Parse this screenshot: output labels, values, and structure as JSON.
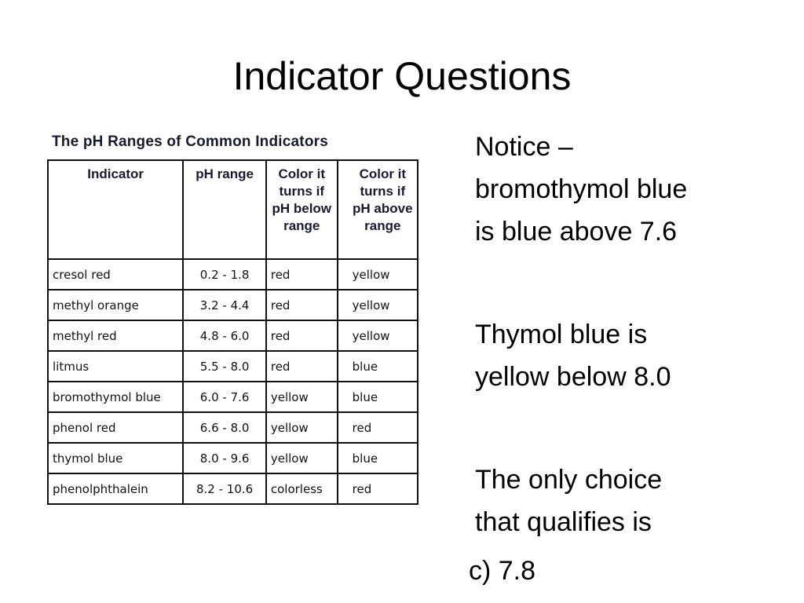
{
  "slide": {
    "title": "Indicator Questions"
  },
  "table": {
    "caption": "The pH Ranges of Common Indicators",
    "headers": [
      "Indicator",
      "pH range",
      "Color it turns if pH below range",
      "Color it turns if pH above range"
    ],
    "rows": [
      [
        "cresol red",
        "0.2 - 1.8",
        "red",
        "yellow"
      ],
      [
        "methyl orange",
        "3.2 - 4.4",
        "red",
        "yellow"
      ],
      [
        "methyl red",
        "4.8 - 6.0",
        "red",
        "yellow"
      ],
      [
        "litmus",
        "5.5 - 8.0",
        "red",
        "blue"
      ],
      [
        "bromothymol blue",
        "6.0 - 7.6",
        "yellow",
        "blue"
      ],
      [
        "phenol red",
        "6.6 - 8.0",
        "yellow",
        "red"
      ],
      [
        "thymol blue",
        "8.0 - 9.6",
        "yellow",
        "blue"
      ],
      [
        "phenolphthalein",
        "8.2 - 10.6",
        "colorless",
        "red"
      ]
    ]
  },
  "notes": [
    [
      "Notice –",
      "bromothymol blue",
      "is blue above 7.6"
    ],
    [
      "Thymol blue is",
      "yellow below 8.0"
    ],
    [
      "The only choice",
      "that qualifies is"
    ]
  ],
  "answer": "c) 7.8"
}
